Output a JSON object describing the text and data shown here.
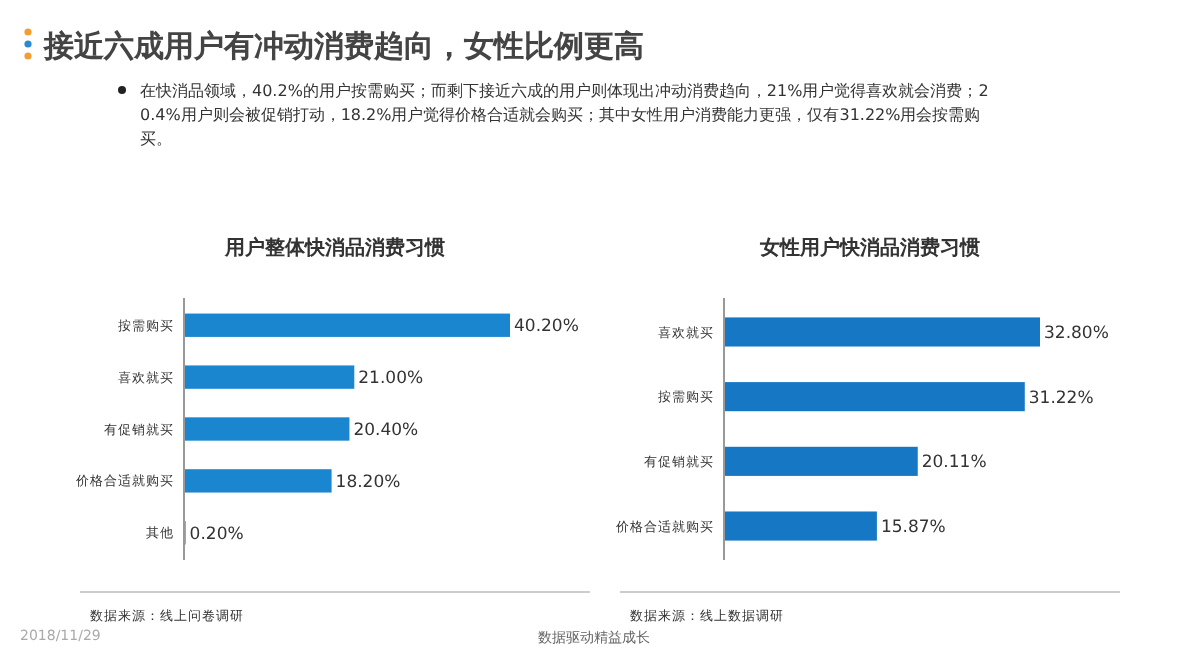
{
  "chart_data": [
    {
      "type": "bar",
      "orientation": "horizontal",
      "title": "用户整体快消品消费习惯",
      "categories": [
        "按需购买",
        "喜欢就买",
        "有促销就买",
        "价格合适就购买",
        "其他"
      ],
      "values": [
        40.2,
        21.0,
        20.4,
        18.2,
        0.2
      ],
      "value_labels": [
        "40.20%",
        "21.00%",
        "20.40%",
        "18.20%",
        "0.20%"
      ],
      "color": "#1a86d0",
      "tick_labels": "y",
      "annotations": [
        "接近六成用户有冲动消费趋向，女性比例更高",
        "在快消品领域，40.2%的用户按需购买；而剩下接近六成的用户则体现出冲动消费趋向，21%用户觉得喜欢就会消费；20.4%用户则会被促销打动，18.2%用户觉得价格合适就会购买；其中女性用户消费能力更强，仅有31.22%用会按需购买。",
        "数据来源：线上问卷调研",
        "2018/11/29",
        "数据驱动精益成长"
      ]
    },
    {
      "type": "bar",
      "orientation": "horizontal",
      "title": "女性用户快消品消费习惯",
      "categories": [
        "喜欢就买",
        "按需购买",
        "有促销就买",
        "价格合适就购买"
      ],
      "values": [
        32.8,
        31.22,
        20.11,
        15.87
      ],
      "value_labels": [
        "32.80%",
        "31.22%",
        "20.11%",
        "15.87%"
      ],
      "color": "#1677c5",
      "tick_labels": "y",
      "annotations": [
        "数据来源：线上数据调研"
      ]
    }
  ]
}
